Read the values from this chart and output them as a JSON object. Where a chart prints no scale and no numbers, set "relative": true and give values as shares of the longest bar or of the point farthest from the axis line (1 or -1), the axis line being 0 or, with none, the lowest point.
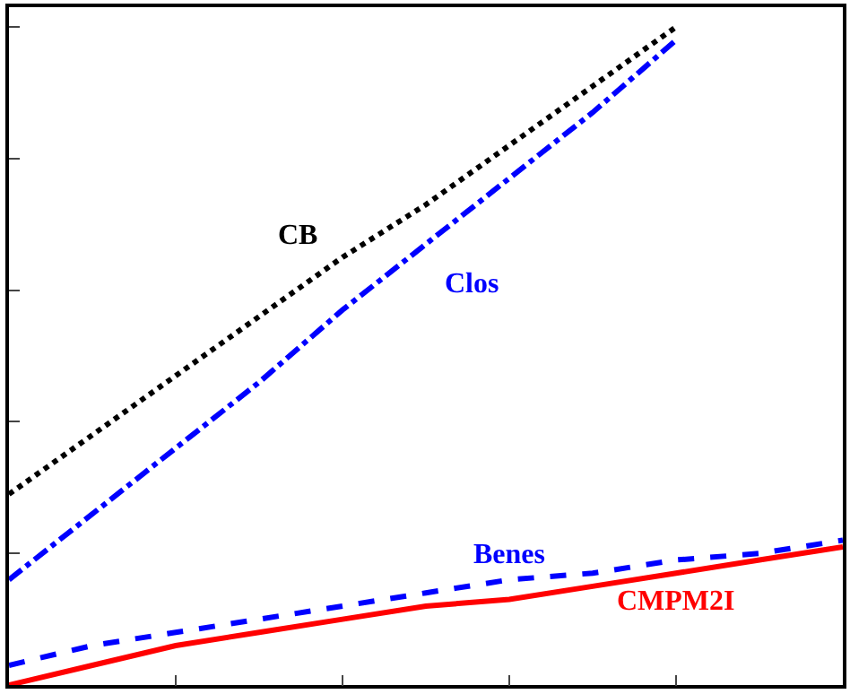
{
  "chart_data": {
    "type": "line",
    "relative": true,
    "legend": false,
    "marker": "none",
    "categories": [
      null,
      null,
      null,
      null,
      null,
      null,
      null,
      null,
      null,
      null,
      null
    ],
    "series": [
      {
        "name": "CB",
        "color": "#000000",
        "line_style": "dotted",
        "values": [
          0.29,
          0.38,
          0.47,
          0.56,
          0.65,
          0.73,
          0.82,
          0.91,
          1.0,
          null,
          null
        ]
      },
      {
        "name": "Clos",
        "color": "#0000ff",
        "line_style": "dashdot",
        "values": [
          0.16,
          0.26,
          0.36,
          0.46,
          0.57,
          0.67,
          0.77,
          0.87,
          0.98,
          null,
          null
        ]
      },
      {
        "name": "Benes",
        "color": "#0000ff",
        "line_style": "dashed",
        "values": [
          0.03,
          0.06,
          0.08,
          0.1,
          0.12,
          0.14,
          0.16,
          0.17,
          0.19,
          0.2,
          0.22
        ]
      },
      {
        "name": "CMPM2I",
        "color": "#ff0000",
        "line_style": "solid",
        "values": [
          0.0,
          0.03,
          0.06,
          0.08,
          0.1,
          0.12,
          0.13,
          0.15,
          0.17,
          0.19,
          0.21
        ]
      }
    ]
  }
}
